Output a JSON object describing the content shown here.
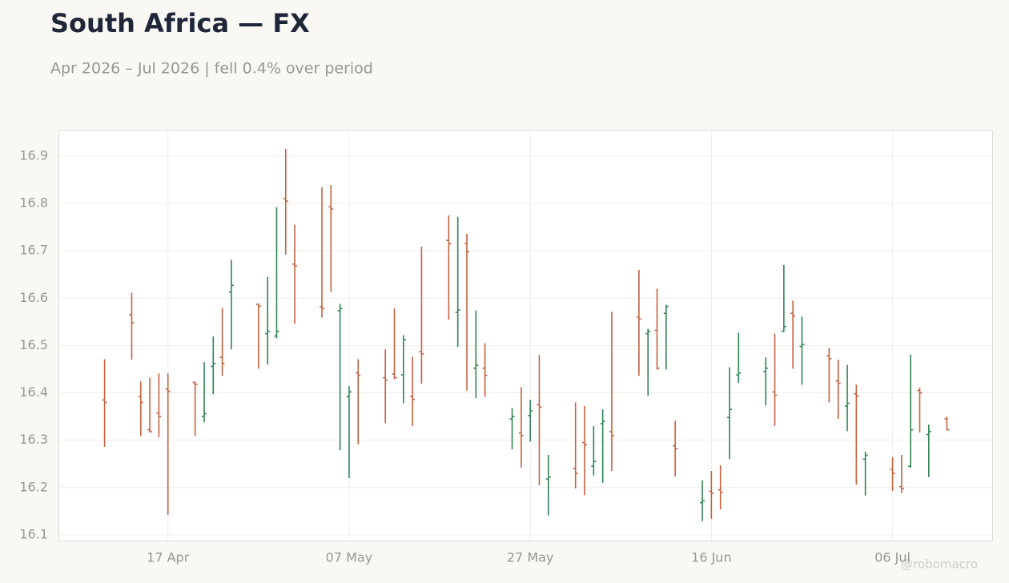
{
  "chart_data": {
    "type": "ohlc",
    "title": "South Africa — FX",
    "subtitle": "Apr 2026 – Jul 2026 | fell 0.4% over period",
    "watermark": "@robomacro",
    "up_color": "#2e8456",
    "down_color": "#c4623f",
    "grid": true,
    "x": [
      "04-10",
      "04-13",
      "04-14",
      "04-15",
      "04-16",
      "04-17",
      "04-20",
      "04-21",
      "04-22",
      "04-23",
      "04-24",
      "04-27",
      "04-28",
      "04-29",
      "04-30",
      "05-01",
      "05-04",
      "05-05",
      "05-06",
      "05-07",
      "05-08",
      "05-11",
      "05-12",
      "05-13",
      "05-14",
      "05-15",
      "05-18",
      "05-19",
      "05-20",
      "05-21",
      "05-22",
      "05-25",
      "05-26",
      "05-27",
      "05-28",
      "05-29",
      "06-01",
      "06-02",
      "06-03",
      "06-04",
      "06-05",
      "06-08",
      "06-09",
      "06-10",
      "06-11",
      "06-12",
      "06-15",
      "06-16",
      "06-17",
      "06-18",
      "06-19",
      "06-22",
      "06-23",
      "06-24",
      "06-25",
      "06-26",
      "06-29",
      "06-30",
      "07-01",
      "07-02",
      "07-03",
      "07-06",
      "07-07",
      "07-08",
      "07-09",
      "07-10",
      "07-12"
    ],
    "open": [
      16.385,
      16.565,
      16.392,
      16.322,
      16.357,
      16.408,
      16.422,
      16.35,
      16.456,
      16.475,
      16.613,
      16.587,
      16.525,
      16.52,
      16.81,
      16.672,
      16.582,
      16.793,
      16.573,
      16.392,
      16.442,
      16.432,
      16.44,
      16.438,
      16.392,
      16.487,
      16.722,
      16.57,
      16.715,
      16.452,
      16.452,
      16.345,
      16.315,
      16.352,
      16.375,
      16.218,
      16.24,
      16.295,
      16.245,
      16.335,
      16.318,
      16.56,
      16.525,
      16.532,
      16.568,
      16.288,
      16.168,
      16.192,
      16.195,
      16.348,
      16.438,
      16.445,
      16.402,
      16.53,
      16.568,
      16.498,
      16.478,
      16.425,
      16.372,
      16.398,
      16.26,
      16.238,
      16.202,
      16.245,
      16.405,
      16.312,
      16.345
    ],
    "high": [
      16.471,
      16.611,
      16.424,
      16.432,
      16.441,
      16.441,
      16.424,
      16.465,
      16.519,
      16.579,
      16.681,
      16.589,
      16.645,
      16.792,
      16.915,
      16.755,
      16.834,
      16.839,
      16.588,
      16.414,
      16.471,
      16.492,
      16.578,
      16.522,
      16.476,
      16.709,
      16.775,
      16.772,
      16.736,
      16.574,
      16.505,
      16.368,
      16.412,
      16.385,
      16.48,
      16.269,
      16.38,
      16.372,
      16.33,
      16.365,
      16.571,
      16.66,
      16.535,
      16.62,
      16.586,
      16.341,
      16.215,
      16.235,
      16.247,
      16.454,
      16.527,
      16.475,
      16.525,
      16.67,
      16.595,
      16.561,
      16.495,
      16.47,
      16.459,
      16.417,
      16.276,
      16.264,
      16.269,
      16.481,
      16.411,
      16.333,
      16.35
    ],
    "low": [
      16.286,
      16.47,
      16.308,
      16.316,
      16.306,
      16.142,
      16.308,
      16.338,
      16.397,
      16.436,
      16.492,
      16.451,
      16.46,
      16.515,
      16.692,
      16.546,
      16.559,
      16.613,
      16.279,
      16.22,
      16.291,
      16.336,
      16.429,
      16.378,
      16.33,
      16.419,
      16.554,
      16.497,
      16.405,
      16.389,
      16.392,
      16.281,
      16.242,
      16.297,
      16.205,
      16.141,
      16.198,
      16.184,
      16.225,
      16.21,
      16.235,
      16.436,
      16.394,
      16.449,
      16.449,
      16.223,
      16.129,
      16.134,
      16.154,
      16.26,
      16.421,
      16.373,
      16.33,
      16.529,
      16.451,
      16.417,
      16.38,
      16.345,
      16.319,
      16.206,
      16.183,
      16.193,
      16.188,
      16.242,
      16.316,
      16.222,
      16.321
    ],
    "close": [
      16.38,
      16.548,
      16.38,
      16.318,
      16.35,
      16.403,
      16.418,
      16.356,
      16.462,
      16.462,
      16.627,
      16.583,
      16.53,
      16.53,
      16.805,
      16.668,
      16.578,
      16.788,
      16.578,
      16.402,
      16.437,
      16.427,
      16.432,
      16.512,
      16.386,
      16.482,
      16.715,
      16.575,
      16.698,
      16.458,
      16.437,
      16.35,
      16.31,
      16.362,
      16.37,
      16.222,
      16.23,
      16.29,
      16.255,
      16.34,
      16.31,
      16.556,
      16.53,
      16.452,
      16.582,
      16.282,
      16.172,
      16.188,
      16.19,
      16.365,
      16.442,
      16.452,
      16.395,
      16.54,
      16.562,
      16.502,
      16.472,
      16.42,
      16.378,
      16.393,
      16.268,
      16.23,
      16.198,
      16.322,
      16.4,
      16.318,
      16.322
    ],
    "xlim": [
      "04-05",
      "07-17"
    ],
    "xticks": [
      {
        "value": "04-17",
        "label": "17 Apr"
      },
      {
        "value": "05-07",
        "label": "07 May"
      },
      {
        "value": "05-27",
        "label": "27 May"
      },
      {
        "value": "06-16",
        "label": "16 Jun"
      },
      {
        "value": "07-06",
        "label": "06 Jul"
      }
    ],
    "ylim": [
      16.088,
      16.954
    ],
    "yticks": [
      16.1,
      16.2,
      16.3,
      16.4,
      16.5,
      16.6,
      16.7,
      16.8,
      16.9
    ]
  }
}
